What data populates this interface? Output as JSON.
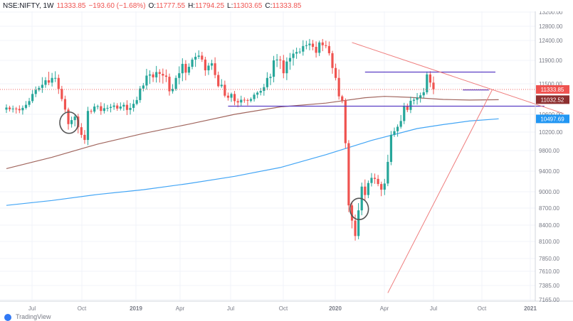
{
  "header": {
    "symbol": "NSE:NIFTY, 1W",
    "last": "11333.85",
    "change": "−193.60 (−1.68%)",
    "o_label": "O:",
    "o_value": "11777.55",
    "h_label": "H:",
    "h_value": "11794.25",
    "l_label": "L:",
    "l_value": "11303.65",
    "c_label": "C:",
    "c_value": "11333.85"
  },
  "footer": {
    "text": "TradingView"
  },
  "colors": {
    "up": "#26a69a",
    "down": "#ef5350",
    "ma_long": "#42a5f5",
    "ma_mid": "#a1665e",
    "level": "#5b3fc4",
    "trend": "#ef7d7d",
    "price_tag": "#ef5350",
    "ma_mid_tag": "#8d2f2f",
    "ma_long_tag": "#2196f3"
  },
  "chart_data": {
    "type": "candlestick",
    "timeframe": "1W",
    "y_ticks": [
      13200,
      12800,
      12400,
      11900,
      11500,
      10600,
      10200,
      9800,
      9400,
      9000,
      8700,
      8400,
      8100,
      7850,
      7610,
      7385,
      7165
    ],
    "y_tick_labels": [
      "13200.00",
      "12800.00",
      "12400.00",
      "11900.00",
      "11500.00",
      "10600.00",
      "10200.00",
      "9800.00",
      "9400.00",
      "9000.00",
      "8700.00",
      "8400.00",
      "8100.00",
      "7850.00",
      "7610.00",
      "7385.00",
      "7165.00"
    ],
    "x_ticks": [
      "Jul",
      "Oct",
      "2019",
      "Apr",
      "Jul",
      "Oct",
      "2020",
      "Apr",
      "Jul",
      "Oct",
      "2021"
    ],
    "price_tags": {
      "last": "11333.85",
      "ma_mid": "11032.52",
      "ma_long": "10497.69"
    },
    "closes": [
      10800,
      10750,
      10770,
      10760,
      10720,
      10790,
      10880,
      10990,
      11200,
      11320,
      11380,
      11470,
      11560,
      11520,
      11600,
      11600,
      11350,
      11050,
      10740,
      10380,
      10470,
      10550,
      10310,
      10140,
      10030,
      10700,
      10680,
      10830,
      10840,
      10700,
      10780,
      10790,
      10820,
      10860,
      10770,
      10830,
      10880,
      10730,
      10790,
      10910,
      11020,
      11360,
      11450,
      11640,
      11660,
      11610,
      11700,
      11670,
      11640,
      11620,
      11280,
      11350,
      11600,
      11680,
      11840,
      11690,
      11790,
      11920,
      11990,
      12020,
      11920,
      11730,
      11810,
      11850,
      11650,
      11430,
      11470,
      11150,
      11090,
      11200,
      10990,
      10950,
      11030,
      11020,
      11000,
      11050,
      11180,
      11240,
      11290,
      11400,
      11600,
      11620,
      11900,
      11920,
      11900,
      11680,
      11880,
      11960,
      12070,
      12110,
      12120,
      12260,
      12280,
      12320,
      12240,
      12090,
      12350,
      12280,
      12260,
      12080,
      11770,
      11600,
      11130,
      11010,
      9960,
      8750,
      8480,
      8200,
      8660,
      9100,
      8940,
      9170,
      9270,
      9250,
      9150,
      9040,
      9160,
      9580,
      10140,
      10220,
      10320,
      10450,
      10840,
      10730,
      11000,
      11030,
      11090,
      11160,
      11250,
      11660,
      11520,
      11340
    ],
    "ma_long": [
      {
        "x": 0,
        "y": 8750
      },
      {
        "x": 14,
        "y": 8840
      },
      {
        "x": 28,
        "y": 8950
      },
      {
        "x": 42,
        "y": 9040
      },
      {
        "x": 56,
        "y": 9160
      },
      {
        "x": 70,
        "y": 9300
      },
      {
        "x": 84,
        "y": 9470
      },
      {
        "x": 98,
        "y": 9720
      },
      {
        "x": 112,
        "y": 10020
      },
      {
        "x": 126,
        "y": 10280
      },
      {
        "x": 134,
        "y": 10370
      },
      {
        "x": 142,
        "y": 10450
      },
      {
        "x": 151,
        "y": 10500
      }
    ],
    "ma_mid": [
      {
        "x": 0,
        "y": 9450
      },
      {
        "x": 14,
        "y": 9670
      },
      {
        "x": 28,
        "y": 9940
      },
      {
        "x": 42,
        "y": 10170
      },
      {
        "x": 56,
        "y": 10380
      },
      {
        "x": 70,
        "y": 10600
      },
      {
        "x": 84,
        "y": 10820
      },
      {
        "x": 98,
        "y": 10930
      },
      {
        "x": 110,
        "y": 11090
      },
      {
        "x": 116,
        "y": 11130
      },
      {
        "x": 124,
        "y": 11100
      },
      {
        "x": 134,
        "y": 11040
      },
      {
        "x": 142,
        "y": 11020
      },
      {
        "x": 151,
        "y": 11032
      }
    ],
    "levels": [
      {
        "from": 68,
        "to": 165,
        "y": 10840
      },
      {
        "from": 110,
        "to": 150,
        "y": 11700
      },
      {
        "from": 140,
        "to": 148,
        "y": 11320
      }
    ],
    "trendlines": [
      {
        "x1": 106,
        "y1": 12350,
        "x2": 171,
        "y2": 10620
      },
      {
        "x1": 117,
        "y1": 7270,
        "x2": 149,
        "y2": 11320
      }
    ],
    "circled_bars": [
      19,
      108,
      148
    ]
  }
}
